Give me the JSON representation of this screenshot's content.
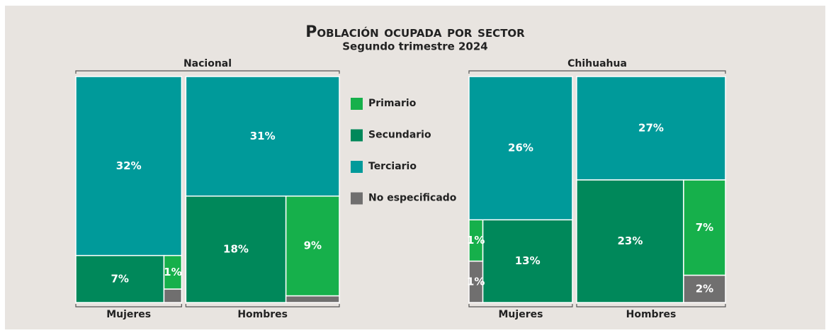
{
  "chart_data": {
    "type": "treemap",
    "title": "Población ocupada por sector",
    "subtitle": "Segundo trimestre 2024",
    "sectors": [
      {
        "name": "Primario",
        "color": "#16b04b"
      },
      {
        "name": "Secundario",
        "color": "#00885a"
      },
      {
        "name": "Terciario",
        "color": "#009a9a"
      },
      {
        "name": "No especificado",
        "color": "#706f6f"
      }
    ],
    "panels": [
      {
        "title": "Nacional",
        "categories": [
          "Mujeres",
          "Hombres"
        ],
        "series": [
          {
            "values": [
              1,
              9
            ],
            "value_labels": [
              "1%",
              "9%"
            ]
          },
          {
            "values": [
              7,
              18
            ],
            "value_labels": [
              "7%",
              "18%"
            ]
          },
          {
            "values": [
              32,
              31
            ],
            "value_labels": [
              "32%",
              "31%"
            ]
          },
          {
            "values": [
              0.4,
              0.6
            ],
            "value_labels": [
              null,
              null
            ]
          }
        ]
      },
      {
        "title": "Chihuahua",
        "categories": [
          "Mujeres",
          "Hombres"
        ],
        "series": [
          {
            "values": [
              1,
              7
            ],
            "value_labels": [
              "1%",
              "7%"
            ]
          },
          {
            "values": [
              13,
              23
            ],
            "value_labels": [
              "13%",
              "23%"
            ]
          },
          {
            "values": [
              26,
              27
            ],
            "value_labels": [
              "26%",
              "27%"
            ]
          },
          {
            "values": [
              1,
              2
            ],
            "value_labels": [
              "1%",
              "2%"
            ]
          }
        ]
      }
    ]
  }
}
